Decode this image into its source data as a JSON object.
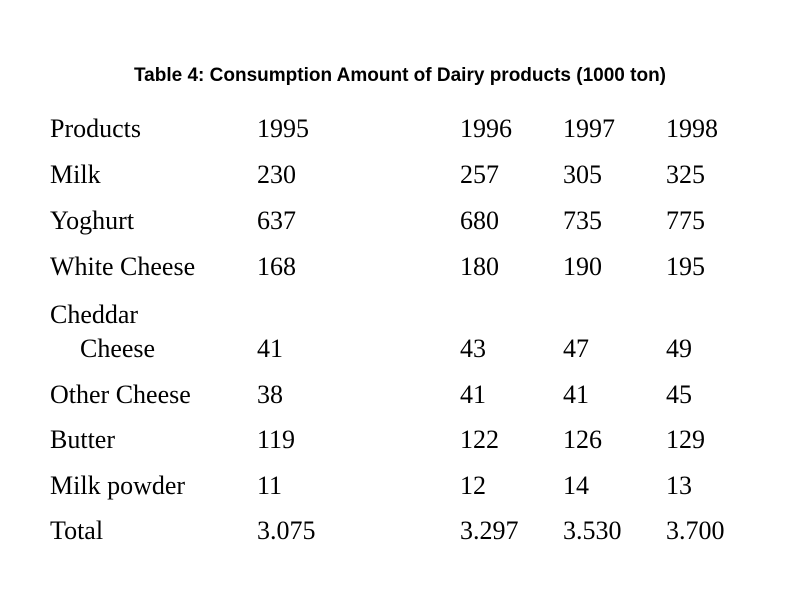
{
  "chart_data": {
    "type": "table",
    "title": "Table 4: Consumption Amount of Dairy products (1000 ton)",
    "columns": [
      "Products",
      "1995",
      "1996",
      "1997",
      "1998"
    ],
    "rows": [
      {
        "product": "Milk",
        "values": [
          "230",
          "257",
          "305",
          "325"
        ]
      },
      {
        "product": "Yoghurt",
        "values": [
          "637",
          "680",
          "735",
          "775"
        ]
      },
      {
        "product": "White Cheese",
        "values": [
          "168",
          "180",
          "190",
          "195"
        ]
      },
      {
        "product_line1": "Cheddar",
        "product_line2": "Cheese",
        "values": [
          "41",
          "43",
          "47",
          "49"
        ]
      },
      {
        "product": "Other Cheese",
        "values": [
          "38",
          "41",
          "41",
          "45"
        ]
      },
      {
        "product": "Butter",
        "values": [
          "119",
          "122",
          "126",
          "129"
        ]
      },
      {
        "product": "Milk powder",
        "values": [
          "11",
          "12",
          "14",
          "13"
        ]
      },
      {
        "product": "Total",
        "values": [
          "3.075",
          "3.297",
          "3.530",
          "3.700"
        ]
      }
    ]
  }
}
